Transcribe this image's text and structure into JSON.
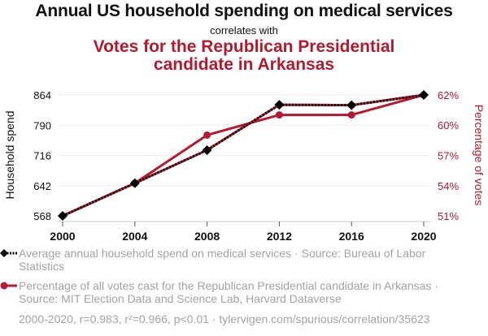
{
  "header": {
    "title": "Annual US household spending on medical services",
    "subtitle": "correlates with",
    "title2_line1": "Votes for the Republican Presidential",
    "title2_line2": "candidate in Arkansas"
  },
  "legend": {
    "items": [
      {
        "label": "Average annual household spend on medical services · Source: Bureau of Labor Statistics",
        "color": "#000000",
        "marker": "diamond",
        "line": "dotted"
      },
      {
        "label": "Percentage of all votes cast for the Republican Presidential candidate in Arkansas · Source: MIT Election Data and Science Lab, Harvard Dataverse",
        "color": "#b5192f",
        "marker": "circle",
        "line": "solid"
      }
    ]
  },
  "footer": {
    "text": "2000-2020, r=0.983, r²=0.966, p<0.01 · tylervigen.com/spurious/correlation/35623"
  },
  "colors": {
    "series1": "#000000",
    "series2": "#b5192f",
    "grid": "#eeeeee",
    "axis": "#cccccc",
    "legend_text": "#a3a3a3"
  },
  "chart_data": {
    "type": "line",
    "title": "Annual US household spending on medical services correlates with Votes for the Republican Presidential candidate in Arkansas",
    "x": [
      2000,
      2004,
      2008,
      2012,
      2016,
      2020
    ],
    "x_tick_labels": [
      "2000",
      "2004",
      "2008",
      "2012",
      "2016",
      "2020"
    ],
    "grid": true,
    "legend_position": "bottom",
    "left_axis": {
      "label": "Household spend",
      "range": [
        568,
        864
      ],
      "tick_values": [
        568,
        642,
        716,
        790,
        864
      ],
      "tick_labels": [
        "568",
        "642",
        "716",
        "790",
        "864"
      ]
    },
    "right_axis": {
      "label": "Percentage of votes",
      "range": [
        51.31,
        62.4
      ],
      "tick_values": [
        51.31,
        54.08,
        56.86,
        59.63,
        62.4
      ],
      "tick_labels": [
        "51%",
        "54%",
        "57%",
        "60%",
        "62%"
      ]
    },
    "series": [
      {
        "name": "Average annual household spend on medical services",
        "axis": "left",
        "values": [
          568,
          648,
          729,
          840,
          839,
          864
        ]
      },
      {
        "name": "Percentage of all votes cast for the Republican Presidential candidate in Arkansas",
        "axis": "right",
        "values": [
          51.31,
          54.31,
          58.72,
          60.57,
          60.57,
          62.4
        ]
      }
    ]
  }
}
